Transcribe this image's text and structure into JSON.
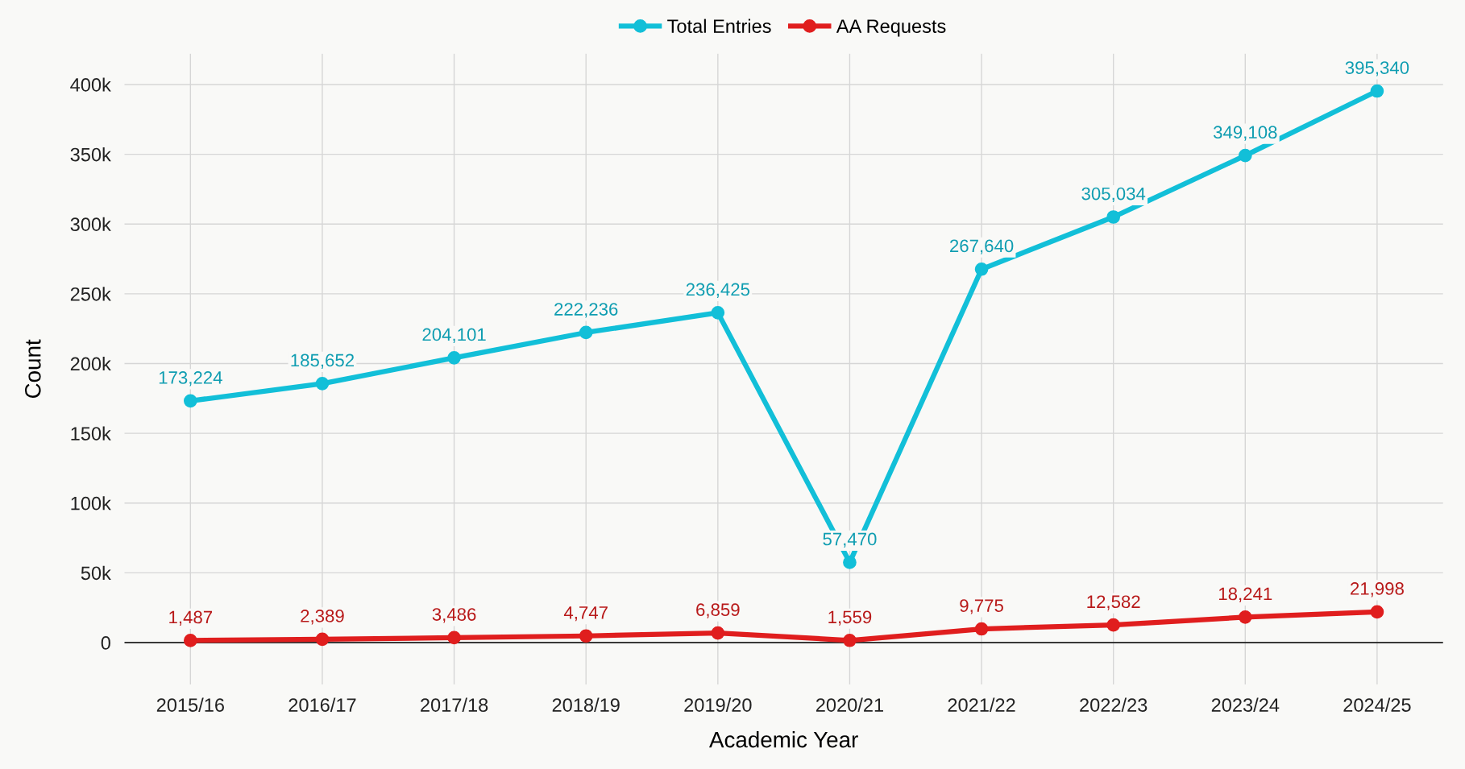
{
  "chart_data": {
    "type": "line",
    "xlabel": "Academic Year",
    "ylabel": "Count",
    "categories": [
      "2015/16",
      "2016/17",
      "2017/18",
      "2018/19",
      "2019/20",
      "2020/21",
      "2021/22",
      "2022/23",
      "2023/24",
      "2024/25"
    ],
    "series": [
      {
        "name": "Total Entries",
        "color": "#12bfd8",
        "values": [
          173224,
          185652,
          204101,
          222236,
          236425,
          57470,
          267640,
          305034,
          349108,
          395340
        ],
        "value_labels": [
          "173,224",
          "185,652",
          "204,101",
          "222,236",
          "236,425",
          "57,470",
          "267,640",
          "305,034",
          "349,108",
          "395,340"
        ]
      },
      {
        "name": "AA Requests",
        "color": "#e01e1e",
        "values": [
          1487,
          2389,
          3486,
          4747,
          6859,
          1559,
          9775,
          12582,
          18241,
          21998
        ],
        "value_labels": [
          "1,487",
          "2,389",
          "3,486",
          "4,747",
          "6,859",
          "1,559",
          "9,775",
          "12,582",
          "18,241",
          "21,998"
        ]
      }
    ],
    "ylim": [
      -30000,
      422000
    ],
    "yticks": [
      0,
      {
        "value": 50000,
        "label": "50k"
      },
      {
        "value": 100000,
        "label": "100k"
      },
      {
        "value": 150000,
        "label": "150k"
      },
      {
        "value": 200000,
        "label": "200k"
      },
      {
        "value": 250000,
        "label": "250k"
      },
      {
        "value": 300000,
        "label": "300k"
      },
      {
        "value": 350000,
        "label": "350k"
      },
      {
        "value": 400000,
        "label": "400k"
      }
    ],
    "grid": true,
    "legend": "top",
    "marker": "circle",
    "line_style": "solid",
    "ref_lines": [
      {
        "axis": "y",
        "value": 0,
        "color": "#000000",
        "line_style": "solid"
      }
    ]
  }
}
